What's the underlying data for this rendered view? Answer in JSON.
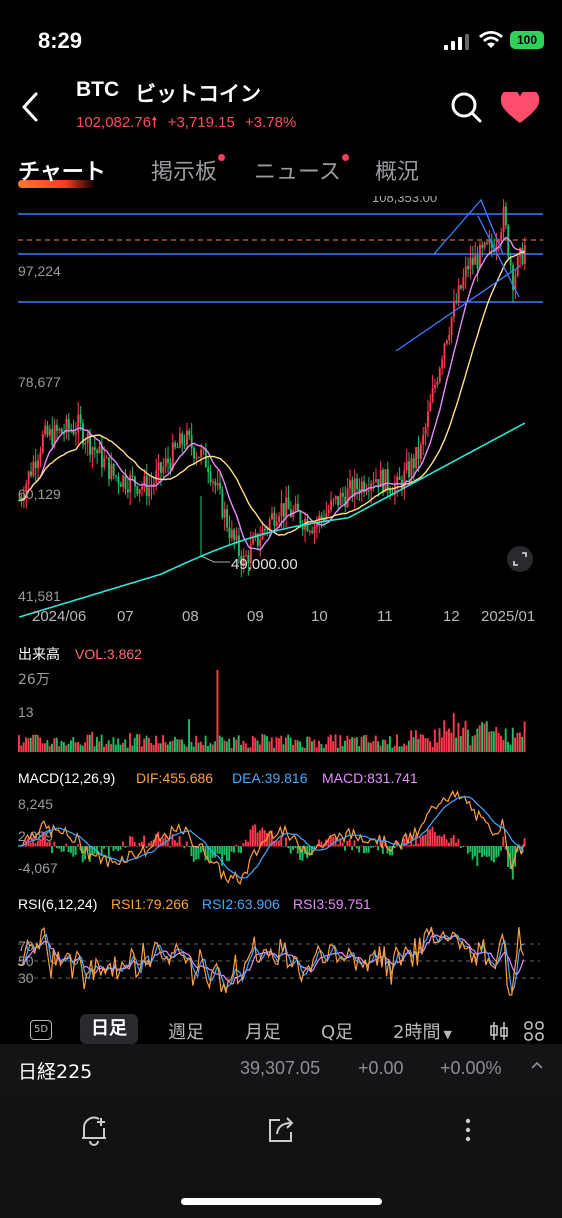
{
  "status": {
    "time": "8:29",
    "battery": "100"
  },
  "header": {
    "symbol": "BTC",
    "name": "ビットコイン",
    "price": "102,082.76",
    "change": "+3,719.15",
    "change_pct": "+3.78%"
  },
  "tabs": [
    {
      "label": "チャート",
      "active": true,
      "dot": false
    },
    {
      "label": "掲示板",
      "active": false,
      "dot": true
    },
    {
      "label": "ニュース",
      "active": false,
      "dot": true
    },
    {
      "label": "概況",
      "active": false,
      "dot": false
    }
  ],
  "main_chart": {
    "y_labels": [
      "97,224",
      "78,677",
      "60,129",
      "41,581"
    ],
    "top_label": "108,353.00",
    "low_annotation": "49,000.00",
    "x_labels": [
      "2024/06",
      "07",
      "08",
      "09",
      "10",
      "11",
      "12",
      "2025/01"
    ]
  },
  "volume": {
    "title": "出来高",
    "vol": "VOL:3.862",
    "y_labels": [
      "26万",
      "13"
    ]
  },
  "macd": {
    "title": "MACD(12,26,9)",
    "dif": "DIF:455.686",
    "dea": "DEA:39.816",
    "macd": "MACD:831.741",
    "y_labels": [
      "8,245",
      "2,089",
      "-4,067"
    ]
  },
  "rsi": {
    "title": "RSI(6,12,24)",
    "rsi1": "RSI1:79.266",
    "rsi2": "RSI2:63.906",
    "rsi3": "RSI3:59.751",
    "y_labels": [
      "70",
      "50",
      "30"
    ]
  },
  "timeframes": [
    "日足",
    "週足",
    "月足",
    "Q足",
    "2時間"
  ],
  "timeframe_5d": "5D",
  "ticker": {
    "name": "日経225",
    "price": "39,307.05",
    "change": "+0.00",
    "change_pct": "+0.00%"
  },
  "colors": {
    "up": "#ff3b4e",
    "down": "#1fbf64",
    "accent": "#ff4d5e",
    "ma1": "#ffe08a",
    "ma2": "#e68cff",
    "ma3": "#2fe3d6",
    "line": "#3f7bff",
    "dif": "#ff9f40",
    "dea": "#43a8ff"
  }
}
